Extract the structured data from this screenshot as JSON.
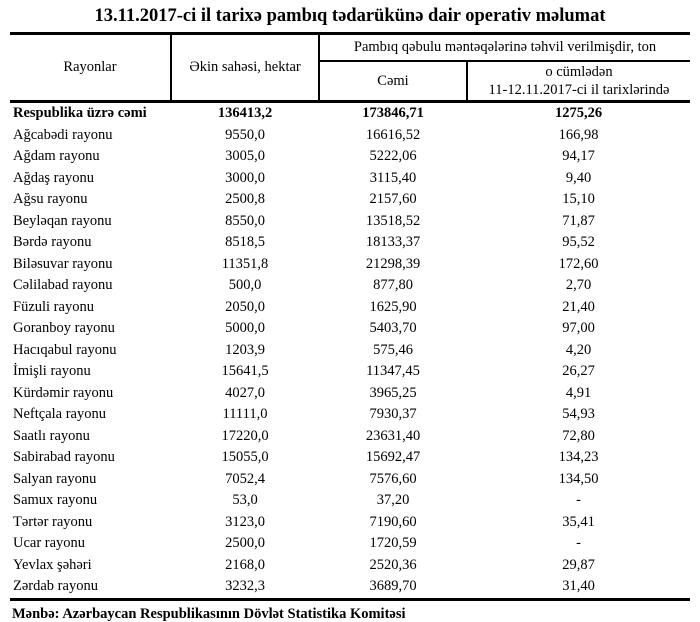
{
  "title": "13.11.2017-ci il tarixə pambıq tədarükünə dair operativ məlumat",
  "table": {
    "col_headers": {
      "regions": "Rayonlar",
      "area": "Əkin sahəsi, hektar",
      "delivered_group": "Pambıq qəbulu məntəqələrinə təhvil verilmişdir, ton",
      "total": "Cəmi",
      "recent_line1": "o cümlədən",
      "recent_line2": "11-12.11.2017-ci il tarixlərində"
    },
    "rows": [
      {
        "region": "Respublika üzrə cəmi",
        "area": "136413,2",
        "total": "173846,71",
        "recent": "1275,26",
        "bold": true
      },
      {
        "region": "Ağcabədi rayonu",
        "area": "9550,0",
        "total": "16616,52",
        "recent": "166,98",
        "bold": false
      },
      {
        "region": "Ağdam rayonu",
        "area": "3005,0",
        "total": "5222,06",
        "recent": "94,17",
        "bold": false
      },
      {
        "region": "Ağdaş rayonu",
        "area": "3000,0",
        "total": "3115,40",
        "recent": "9,40",
        "bold": false
      },
      {
        "region": "Ağsu rayonu",
        "area": "2500,8",
        "total": "2157,60",
        "recent": "15,10",
        "bold": false
      },
      {
        "region": "Beyləqan rayonu",
        "area": "8550,0",
        "total": "13518,52",
        "recent": "71,87",
        "bold": false
      },
      {
        "region": "Bərdə rayonu",
        "area": "8518,5",
        "total": "18133,37",
        "recent": "95,52",
        "bold": false
      },
      {
        "region": "Biləsuvar rayonu",
        "area": "11351,8",
        "total": "21298,39",
        "recent": "172,60",
        "bold": false
      },
      {
        "region": "Cəlilabad rayonu",
        "area": "500,0",
        "total": "877,80",
        "recent": "2,70",
        "bold": false
      },
      {
        "region": "Füzuli rayonu",
        "area": "2050,0",
        "total": "1625,90",
        "recent": "21,40",
        "bold": false
      },
      {
        "region": "Goranboy rayonu",
        "area": "5000,0",
        "total": "5403,70",
        "recent": "97,00",
        "bold": false
      },
      {
        "region": "Hacıqabul rayonu",
        "area": "1203,9",
        "total": "575,46",
        "recent": "4,20",
        "bold": false
      },
      {
        "region": "İmişli rayonu",
        "area": "15641,5",
        "total": "11347,45",
        "recent": "26,27",
        "bold": false
      },
      {
        "region": "Kürdəmir rayonu",
        "area": "4027,0",
        "total": "3965,25",
        "recent": "4,91",
        "bold": false
      },
      {
        "region": "Neftçala rayonu",
        "area": "11111,0",
        "total": "7930,37",
        "recent": "54,93",
        "bold": false
      },
      {
        "region": "Saatlı rayonu",
        "area": "17220,0",
        "total": "23631,40",
        "recent": "72,80",
        "bold": false
      },
      {
        "region": "Sabirabad rayonu",
        "area": "15055,0",
        "total": "15692,47",
        "recent": "134,23",
        "bold": false
      },
      {
        "region": "Salyan rayonu",
        "area": "7052,4",
        "total": "7576,60",
        "recent": "134,50",
        "bold": false
      },
      {
        "region": "Samux rayonu",
        "area": "53,0",
        "total": "37,20",
        "recent": "-",
        "bold": false
      },
      {
        "region": "Tərtər rayonu",
        "area": "3123,0",
        "total": "7190,60",
        "recent": "35,41",
        "bold": false
      },
      {
        "region": "Ucar rayonu",
        "area": "2500,0",
        "total": "1720,59",
        "recent": "-",
        "bold": false
      },
      {
        "region": "Yevlax şəhəri",
        "area": "2168,0",
        "total": "2520,36",
        "recent": "29,87",
        "bold": false
      },
      {
        "region": "Zərdab rayonu",
        "area": "3232,3",
        "total": "3689,70",
        "recent": "31,40",
        "bold": false
      }
    ]
  },
  "footer": "Mənbə: Azərbaycan Respublikasının Dövlət Statistika Komitəsi"
}
